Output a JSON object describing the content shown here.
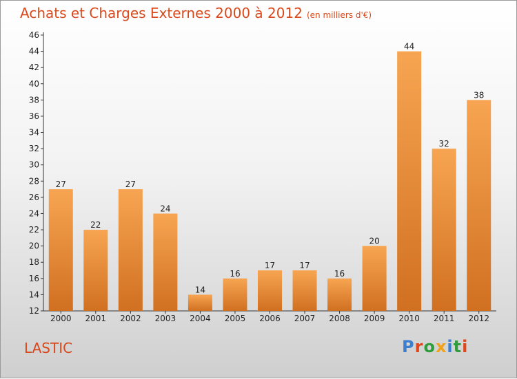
{
  "header": {
    "title": "Achats et Charges Externes 2000 à 2012",
    "unit": "(en milliers d'€)"
  },
  "footer": {
    "commune": "LASTIC",
    "logo_text": "Proxiti"
  },
  "logo_colors": [
    "#3a7fd0",
    "#e0461b",
    "#2f9d3b",
    "#f0a21b",
    "#3a7fd0",
    "#2f9d3b",
    "#e0461b"
  ],
  "colors": {
    "bar_top": "#f7a552",
    "bar_bottom": "#d07020",
    "text": "#d8491c"
  },
  "chart_data": {
    "type": "bar",
    "categories": [
      "2000",
      "2001",
      "2002",
      "2003",
      "2004",
      "2005",
      "2006",
      "2007",
      "2008",
      "2009",
      "2010",
      "2011",
      "2012"
    ],
    "values": [
      27,
      22,
      27,
      24,
      14,
      16,
      17,
      17,
      16,
      20,
      44,
      32,
      38
    ],
    "ylim": [
      12,
      46
    ],
    "yticks": [
      12,
      14,
      16,
      18,
      20,
      22,
      24,
      26,
      28,
      30,
      32,
      34,
      36,
      38,
      40,
      42,
      44,
      46
    ],
    "grid": false,
    "legend": "none"
  }
}
